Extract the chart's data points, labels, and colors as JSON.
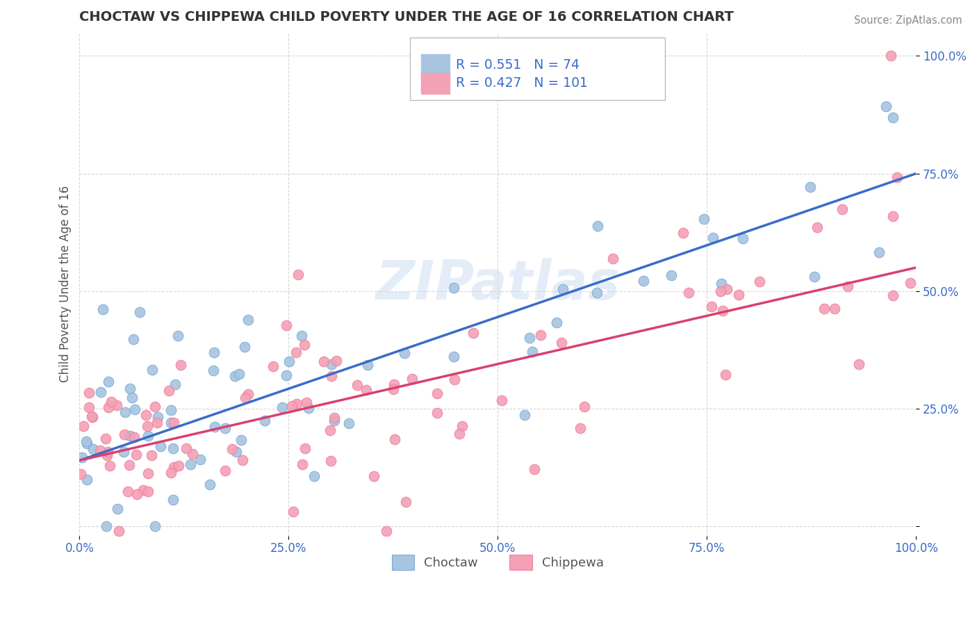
{
  "title": "CHOCTAW VS CHIPPEWA CHILD POVERTY UNDER THE AGE OF 16 CORRELATION CHART",
  "source": "Source: ZipAtlas.com",
  "ylabel": "Child Poverty Under the Age of 16",
  "xlim": [
    0.0,
    1.0
  ],
  "ylim": [
    -0.02,
    1.05
  ],
  "xticks": [
    0.0,
    0.25,
    0.5,
    0.75,
    1.0
  ],
  "yticks": [
    0.0,
    0.25,
    0.5,
    0.75,
    1.0
  ],
  "xticklabels": [
    "0.0%",
    "25.0%",
    "50.0%",
    "75.0%",
    "100.0%"
  ],
  "yticklabels": [
    "",
    "25.0%",
    "50.0%",
    "75.0%",
    "100.0%"
  ],
  "choctaw_color": "#a8c4e0",
  "chippewa_color": "#f4a0b5",
  "choctaw_edge_color": "#7aadd4",
  "chippewa_edge_color": "#ee82a0",
  "choctaw_line_color": "#3a6bc9",
  "chippewa_line_color": "#d94070",
  "choctaw_R": 0.551,
  "choctaw_N": 74,
  "chippewa_R": 0.427,
  "chippewa_N": 101,
  "choctaw_line_x0": 0.0,
  "choctaw_line_y0": 0.14,
  "choctaw_line_x1": 1.0,
  "choctaw_line_y1": 0.75,
  "chippewa_line_x0": 0.0,
  "chippewa_line_y0": 0.14,
  "chippewa_line_x1": 1.0,
  "chippewa_line_y1": 0.55,
  "watermark": "ZIPatlas",
  "background_color": "#ffffff",
  "grid_color": "#cccccc",
  "title_color": "#333333",
  "ylabel_color": "#555555",
  "tick_color": "#3a6bc9",
  "source_color": "#888888",
  "legend_text_color": "#3a6bc9"
}
